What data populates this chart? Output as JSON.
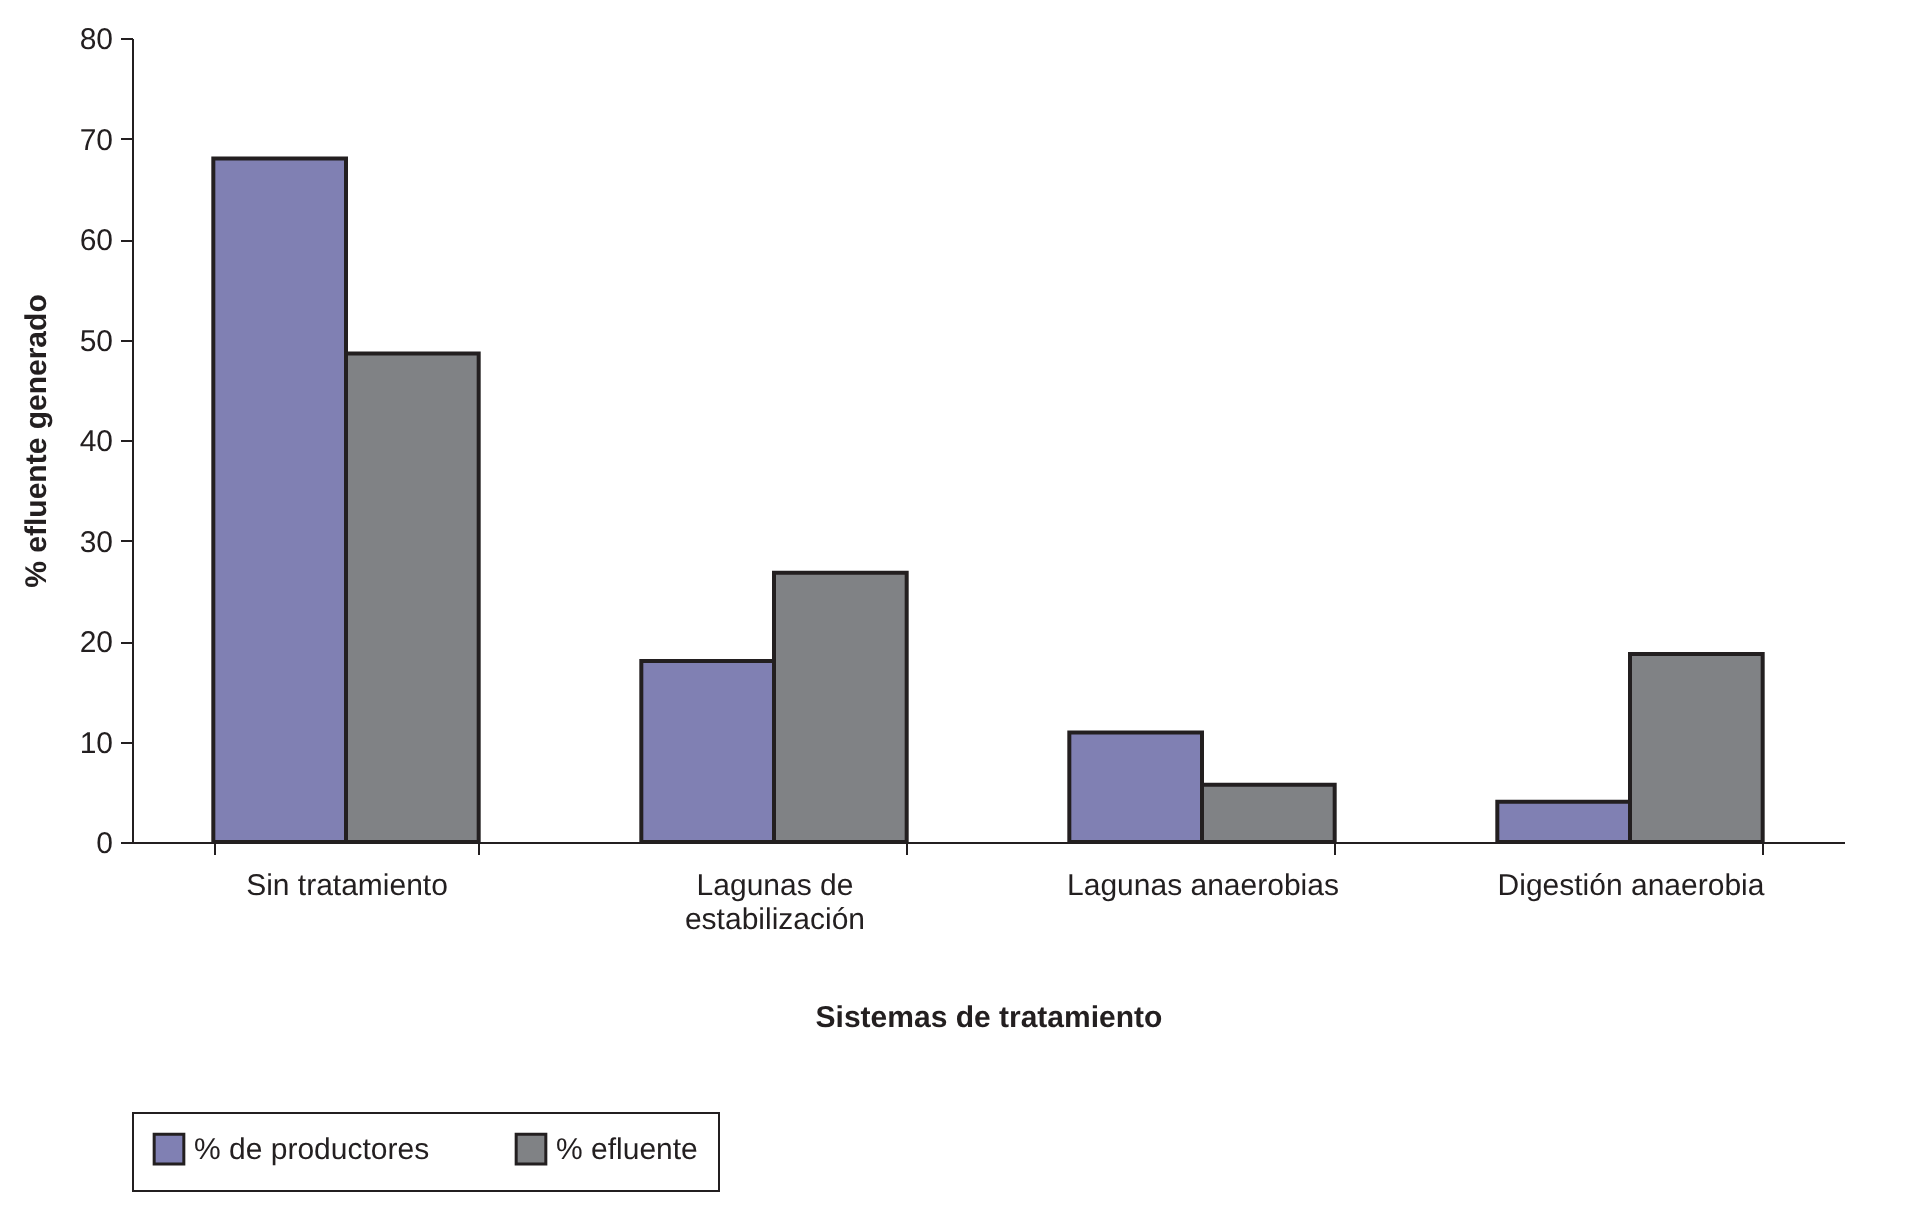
{
  "chart_data": {
    "type": "bar",
    "xlabel": "Sistemas de tratamiento",
    "ylabel": "%  efluente generado",
    "categories": [
      "Sin tratamiento",
      "Lagunas de estabilización",
      "Lagunas anaerobias",
      "Digestión anaerobia"
    ],
    "series": [
      {
        "name": "% de productores",
        "color": "#8080b3",
        "values": [
          68,
          18,
          10.9,
          4
        ]
      },
      {
        "name": "% efluente",
        "color": "#808285",
        "values": [
          48.6,
          26.8,
          5.7,
          18.7
        ]
      }
    ],
    "ylim": [
      0,
      80
    ],
    "yticks": [
      0,
      10,
      20,
      30,
      40,
      50,
      60,
      70,
      80
    ],
    "grid": false,
    "legend": "bottom"
  }
}
